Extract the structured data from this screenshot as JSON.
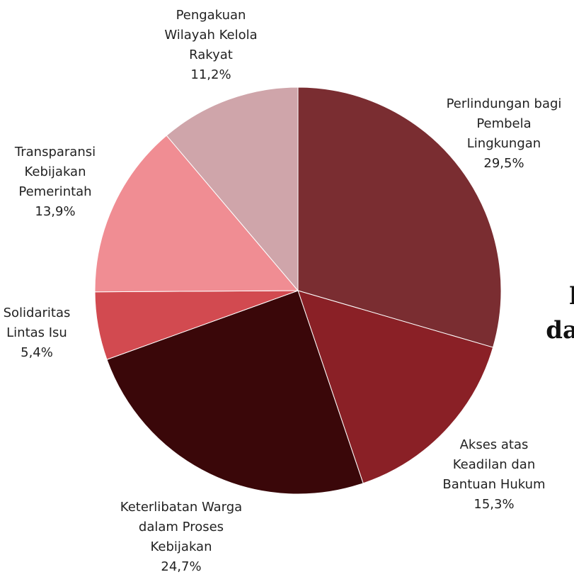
{
  "chart_data": {
    "type": "pie",
    "categories": [
      [
        "Perlindungan bagi",
        "Pembela",
        "Lingkungan"
      ],
      [
        "Akses atas",
        "Keadilan dan",
        "Bantuan Hukum"
      ],
      [
        "Keterlibatan Warga",
        "dalam Proses",
        "Kebijakan"
      ],
      [
        "Solidaritas",
        "Lintas Isu"
      ],
      [
        "Transparansi",
        "Kebijakan",
        "Pemerintah"
      ],
      [
        "Pengakuan",
        "Wilayah Kelola",
        "Rakyat"
      ]
    ],
    "values": [
      29.5,
      15.3,
      24.7,
      5.4,
      13.9,
      11.2
    ],
    "value_labels": [
      "29,5%",
      "15,3%",
      "24,7%",
      "5,4%",
      "13,9%",
      "11,2%"
    ],
    "colors": [
      "#7a2d31",
      "#8a2026",
      "#3a0709",
      "#d24a50",
      "#f08d93",
      "#cfa5aa"
    ],
    "background_text": [
      "l",
      "da"
    ]
  }
}
